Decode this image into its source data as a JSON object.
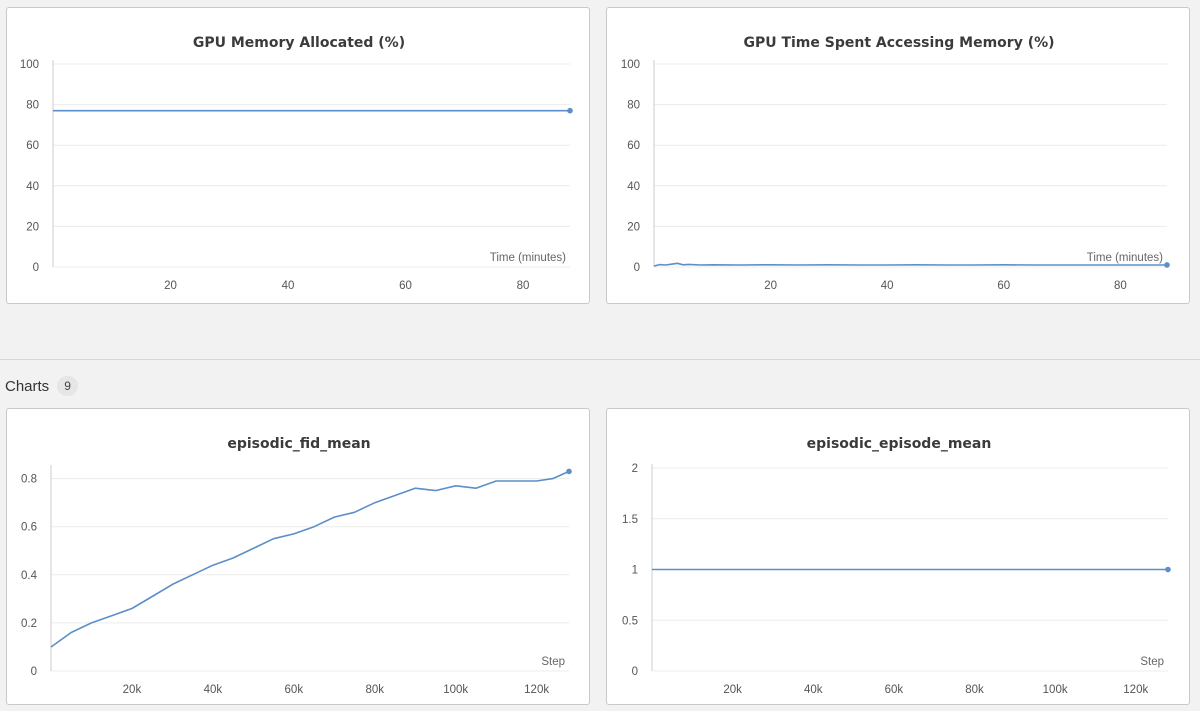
{
  "section": {
    "title": "Charts",
    "count": "9"
  },
  "colors": {
    "line": "#5b8fc9",
    "grid": "#ececec",
    "axis": "#cccccc"
  },
  "chart_data": [
    {
      "type": "line",
      "title": "GPU Memory Allocated (%)",
      "xlabel": "Time (minutes)",
      "ylabel": "",
      "xlim": [
        0,
        88
      ],
      "ylim": [
        0,
        100
      ],
      "yticks": [
        0,
        20,
        40,
        60,
        80,
        100
      ],
      "ytick_labels": [
        "0",
        "20",
        "40",
        "60",
        "80",
        "100"
      ],
      "xticks": [
        20,
        40,
        60,
        80
      ],
      "xtick_labels": [
        "20",
        "40",
        "60",
        "80"
      ],
      "series": [
        {
          "name": "GPU Memory Allocated (%)",
          "x": [
            0,
            88
          ],
          "y": [
            77,
            77
          ]
        }
      ]
    },
    {
      "type": "line",
      "title": "GPU Time Spent Accessing Memory (%)",
      "xlabel": "Time (minutes)",
      "ylabel": "",
      "xlim": [
        0,
        88
      ],
      "ylim": [
        0,
        100
      ],
      "yticks": [
        0,
        20,
        40,
        60,
        80,
        100
      ],
      "ytick_labels": [
        "0",
        "20",
        "40",
        "60",
        "80",
        "100"
      ],
      "xticks": [
        20,
        40,
        60,
        80
      ],
      "xtick_labels": [
        "20",
        "40",
        "60",
        "80"
      ],
      "series": [
        {
          "name": "GPU Time Spent Accessing Memory (%)",
          "x": [
            0,
            1,
            2,
            3,
            4,
            5,
            6,
            8,
            10,
            15,
            20,
            25,
            30,
            35,
            40,
            45,
            50,
            55,
            60,
            65,
            70,
            75,
            80,
            85,
            88
          ],
          "y": [
            0.5,
            1.2,
            1.0,
            1.4,
            1.8,
            1.1,
            1.3,
            1.0,
            1.1,
            1.0,
            1.1,
            1.0,
            1.1,
            1.0,
            1.0,
            1.1,
            1.0,
            1.0,
            1.1,
            1.0,
            1.0,
            1.0,
            1.0,
            1.0,
            1.0
          ]
        }
      ]
    },
    {
      "type": "line",
      "title": "episodic_fid_mean",
      "xlabel": "Step",
      "ylabel": "",
      "xlim": [
        0,
        128000
      ],
      "ylim": [
        0,
        0.84
      ],
      "yticks": [
        0,
        0.2,
        0.4,
        0.6,
        0.8
      ],
      "ytick_labels": [
        "0",
        "0.2",
        "0.4",
        "0.6",
        "0.8"
      ],
      "xticks": [
        20000,
        40000,
        60000,
        80000,
        100000,
        120000
      ],
      "xtick_labels": [
        "20k",
        "40k",
        "60k",
        "80k",
        "100k",
        "120k"
      ],
      "series": [
        {
          "name": "episodic_fid_mean",
          "x": [
            0,
            5000,
            10000,
            15000,
            20000,
            25000,
            30000,
            35000,
            40000,
            45000,
            50000,
            55000,
            60000,
            65000,
            70000,
            75000,
            80000,
            85000,
            90000,
            95000,
            100000,
            105000,
            110000,
            115000,
            120000,
            124000,
            128000
          ],
          "y": [
            0.1,
            0.16,
            0.2,
            0.23,
            0.26,
            0.31,
            0.36,
            0.4,
            0.44,
            0.47,
            0.51,
            0.55,
            0.57,
            0.6,
            0.64,
            0.66,
            0.7,
            0.73,
            0.76,
            0.75,
            0.77,
            0.76,
            0.79,
            0.79,
            0.79,
            0.8,
            0.83
          ]
        }
      ]
    },
    {
      "type": "line",
      "title": "episodic_episode_mean",
      "xlabel": "Step",
      "ylabel": "",
      "xlim": [
        0,
        128000
      ],
      "ylim": [
        0,
        2
      ],
      "yticks": [
        0,
        0.5,
        1,
        1.5,
        2
      ],
      "ytick_labels": [
        "0",
        "0.5",
        "1",
        "1.5",
        "2"
      ],
      "xticks": [
        20000,
        40000,
        60000,
        80000,
        100000,
        120000
      ],
      "xtick_labels": [
        "20k",
        "40k",
        "60k",
        "80k",
        "100k",
        "120k"
      ],
      "series": [
        {
          "name": "episodic_episode_mean",
          "x": [
            0,
            128000
          ],
          "y": [
            1,
            1
          ]
        }
      ]
    }
  ]
}
